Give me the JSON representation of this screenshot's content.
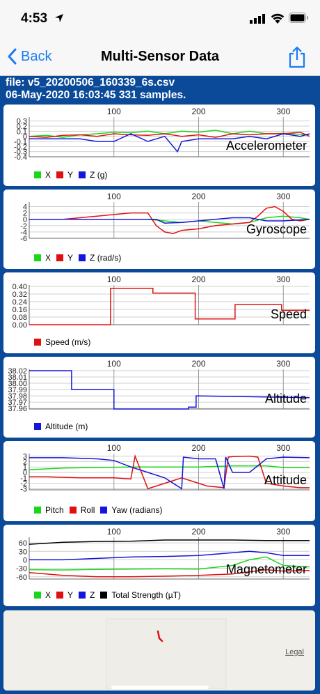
{
  "status_bar": {
    "time": "4:53"
  },
  "nav": {
    "back_label": "Back",
    "title": "Multi-Sensor Data"
  },
  "file_info": {
    "file": "file: v5_20200506_160339_6s.csv",
    "timestamp": "06-May-2020 16:03:45   331 samples."
  },
  "colors": {
    "x": "#18d818",
    "y": "#e01010",
    "z": "#1515dd",
    "total": "#000000",
    "accent": "#1a7cf5",
    "background": "#0b4a99"
  },
  "map": {
    "legal_label": "Legal"
  },
  "chart_data": [
    {
      "type": "line",
      "title": "Accelerometer",
      "x_ticks": [
        "100",
        "200",
        "300"
      ],
      "x_tick_values": [
        100,
        200,
        300
      ],
      "xlim": [
        0,
        331
      ],
      "y_ticks": [
        "0.3",
        "0.2",
        "0.1",
        "0",
        "-0.1",
        "-0.2",
        "-0.3",
        "-0.4"
      ],
      "ylim": [
        -0.4,
        0.35
      ],
      "legend": [
        "X",
        "Y",
        "Z (g)"
      ],
      "series": [
        {
          "name": "X",
          "color": "#18d818",
          "x": [
            0,
            20,
            40,
            60,
            80,
            100,
            120,
            140,
            160,
            180,
            200,
            220,
            240,
            260,
            280,
            300,
            320,
            331
          ],
          "values": [
            0.0,
            0.02,
            -0.02,
            0.03,
            0.05,
            0.08,
            0.07,
            0.1,
            0.05,
            0.1,
            0.08,
            0.12,
            0.05,
            0.1,
            0.05,
            0.06,
            0.04,
            0.04
          ]
        },
        {
          "name": "Y",
          "color": "#e01010",
          "x": [
            0,
            20,
            40,
            60,
            80,
            100,
            120,
            140,
            160,
            180,
            200,
            220,
            240,
            260,
            280,
            300,
            320,
            331
          ],
          "values": [
            0.0,
            -0.02,
            0.02,
            0.03,
            0.0,
            0.05,
            0.03,
            0.02,
            0.05,
            0.0,
            0.03,
            -0.02,
            0.05,
            0.03,
            0.05,
            0.05,
            0.08,
            0.0
          ]
        },
        {
          "name": "Z (g)",
          "color": "#1515dd",
          "x": [
            0,
            20,
            40,
            60,
            80,
            100,
            120,
            140,
            160,
            175,
            180,
            200,
            220,
            240,
            260,
            280,
            300,
            320,
            331
          ],
          "values": [
            -0.05,
            -0.05,
            -0.05,
            -0.05,
            -0.1,
            -0.1,
            0.05,
            -0.1,
            0.0,
            -0.3,
            -0.1,
            -0.05,
            -0.05,
            -0.05,
            0.0,
            -0.05,
            0.05,
            0.0,
            0.05
          ]
        }
      ]
    },
    {
      "type": "line",
      "title": "Gyroscope",
      "x_ticks": [
        "100",
        "200",
        "300"
      ],
      "x_tick_values": [
        100,
        200,
        300
      ],
      "xlim": [
        0,
        331
      ],
      "y_ticks": [
        "4",
        "2",
        "0",
        "-2",
        "-4",
        "-6"
      ],
      "ylim": [
        -6,
        5
      ],
      "legend": [
        "X",
        "Y",
        "Z (rad/s)"
      ],
      "series": [
        {
          "name": "X",
          "color": "#18d818",
          "x": [
            0,
            20,
            40,
            60,
            80,
            100,
            120,
            140,
            160,
            180,
            200,
            220,
            240,
            260,
            280,
            300,
            320,
            331
          ],
          "values": [
            0,
            0,
            0,
            0,
            0,
            0,
            0,
            0,
            -0.5,
            -1,
            -0.5,
            -1,
            -1.5,
            -1,
            0.5,
            1,
            0.5,
            0
          ]
        },
        {
          "name": "Y",
          "color": "#e01010",
          "x": [
            0,
            20,
            40,
            60,
            80,
            100,
            120,
            140,
            150,
            160,
            170,
            180,
            200,
            220,
            240,
            260,
            270,
            280,
            290,
            300,
            310,
            320,
            331
          ],
          "values": [
            0,
            0,
            0,
            0.5,
            1,
            1.5,
            2,
            2,
            -2,
            -4,
            -4.5,
            -3.5,
            -3,
            -2,
            -1.5,
            -1,
            1,
            3.5,
            4,
            2.5,
            0,
            -0.5,
            0
          ]
        },
        {
          "name": "Z (rad/s)",
          "color": "#1515dd",
          "x": [
            0,
            20,
            40,
            60,
            80,
            100,
            120,
            140,
            150,
            160,
            180,
            200,
            220,
            240,
            260,
            280,
            300,
            320,
            331
          ],
          "values": [
            0,
            0,
            0,
            0,
            0,
            0,
            0,
            0,
            0,
            -1.2,
            -1,
            -0.5,
            0,
            0.5,
            0.5,
            -0.5,
            -0.5,
            -0.2,
            0
          ]
        }
      ]
    },
    {
      "type": "line",
      "title": "Speed",
      "x_ticks": [
        "100",
        "200",
        "300"
      ],
      "x_tick_values": [
        100,
        200,
        300
      ],
      "xlim": [
        0,
        331
      ],
      "y_ticks": [
        "0.40",
        "0.32",
        "0.24",
        "0.16",
        "0.08",
        "0.00"
      ],
      "ylim": [
        0,
        0.4
      ],
      "legend": [
        "Speed (m/s)"
      ],
      "series": [
        {
          "name": "Speed (m/s)",
          "color": "#e01010",
          "x": [
            0,
            96,
            96,
            146,
            146,
            196,
            196,
            243,
            243,
            298,
            298,
            331
          ],
          "values": [
            0,
            0,
            0.38,
            0.38,
            0.33,
            0.33,
            0.06,
            0.06,
            0.21,
            0.21,
            0.15,
            0.15
          ]
        }
      ]
    },
    {
      "type": "line",
      "title": "Altitude",
      "x_ticks": [
        "100",
        "200",
        "300"
      ],
      "x_tick_values": [
        100,
        200,
        300
      ],
      "xlim": [
        0,
        331
      ],
      "y_ticks": [
        "38.02",
        "38.01",
        "38.00",
        "37.99",
        "37.98",
        "37.97",
        "37.96"
      ],
      "ylim": [
        37.959,
        38.02
      ],
      "legend": [
        "Altitude (m)"
      ],
      "series": [
        {
          "name": "Altitude (m)",
          "color": "#1515dd",
          "x": [
            0,
            50,
            50,
            100,
            100,
            188,
            188,
            197,
            197,
            331
          ],
          "values": [
            38.02,
            38.02,
            37.99,
            37.99,
            37.959,
            37.959,
            37.962,
            37.962,
            37.98,
            37.977
          ]
        }
      ]
    },
    {
      "type": "line",
      "title": "Attitude",
      "x_ticks": [
        "100",
        "200",
        "300"
      ],
      "x_tick_values": [
        100,
        200,
        300
      ],
      "xlim": [
        0,
        331
      ],
      "y_ticks": [
        "3",
        "2",
        "1",
        "0",
        "-1",
        "-2",
        "-3"
      ],
      "ylim": [
        -3.2,
        3.2
      ],
      "legend": [
        "Pitch",
        "Roll",
        "Yaw (radians)"
      ],
      "series": [
        {
          "name": "Pitch",
          "color": "#18d818",
          "x": [
            0,
            40,
            80,
            120,
            160,
            200,
            240,
            280,
            300,
            331
          ],
          "values": [
            0.5,
            0.8,
            0.9,
            1.0,
            1.0,
            1.0,
            1.2,
            1.2,
            0.9,
            0.9
          ]
        },
        {
          "name": "Roll",
          "color": "#e01010",
          "x": [
            0,
            20,
            40,
            60,
            80,
            100,
            120,
            125,
            140,
            160,
            180,
            200,
            210,
            230,
            235,
            240,
            260,
            270,
            280,
            300,
            320,
            331
          ],
          "values": [
            -0.8,
            -0.8,
            -0.9,
            -1.0,
            -1.0,
            -1.0,
            -1.2,
            3.0,
            -3.0,
            -2.0,
            -1.0,
            -2.0,
            -2.5,
            -2.8,
            2.8,
            2.9,
            3.0,
            2.8,
            -2.0,
            -2.5,
            -2.8,
            -2.8
          ]
        },
        {
          "name": "Yaw (radians)",
          "color": "#1515dd",
          "x": [
            0,
            40,
            80,
            100,
            120,
            140,
            160,
            180,
            182,
            200,
            220,
            230,
            232,
            240,
            260,
            280,
            300,
            331
          ],
          "values": [
            2.7,
            2.7,
            2.5,
            2.2,
            1.0,
            0.0,
            -1.0,
            -3.0,
            2.8,
            2.5,
            2.5,
            -3.0,
            2.8,
            0,
            0,
            2.5,
            2.8,
            2.7
          ]
        }
      ]
    },
    {
      "type": "line",
      "title": "Magnetometer",
      "x_ticks": [
        "100",
        "200",
        "300"
      ],
      "x_tick_values": [
        100,
        200,
        300
      ],
      "xlim": [
        0,
        331
      ],
      "y_ticks": [
        "60",
        "30",
        "0",
        "-30",
        "-60"
      ],
      "ylim": [
        -68,
        75
      ],
      "legend": [
        "X",
        "Y",
        "Z",
        "Total Strength (µT)"
      ],
      "series": [
        {
          "name": "X",
          "color": "#18d818",
          "x": [
            0,
            40,
            80,
            120,
            160,
            200,
            240,
            260,
            280,
            300,
            331
          ],
          "values": [
            -35,
            -36,
            -34,
            -33,
            -32,
            -33,
            -20,
            0,
            10,
            -20,
            -25
          ]
        },
        {
          "name": "Y",
          "color": "#e01010",
          "x": [
            0,
            20,
            40,
            80,
            120,
            160,
            200,
            240,
            280,
            300,
            331
          ],
          "values": [
            -45,
            -50,
            -55,
            -60,
            -60,
            -58,
            -55,
            -50,
            -35,
            -40,
            -38
          ]
        },
        {
          "name": "Z",
          "color": "#1515dd",
          "x": [
            0,
            40,
            80,
            120,
            160,
            200,
            240,
            260,
            280,
            300,
            331
          ],
          "values": [
            0,
            0,
            5,
            10,
            12,
            15,
            25,
            30,
            25,
            15,
            15
          ]
        },
        {
          "name": "Total Strength (µT)",
          "color": "#000000",
          "x": [
            0,
            40,
            80,
            120,
            160,
            200,
            240,
            280,
            300,
            331
          ],
          "values": [
            55,
            62,
            65,
            66,
            70,
            70,
            70,
            68,
            68,
            68
          ]
        }
      ]
    }
  ]
}
